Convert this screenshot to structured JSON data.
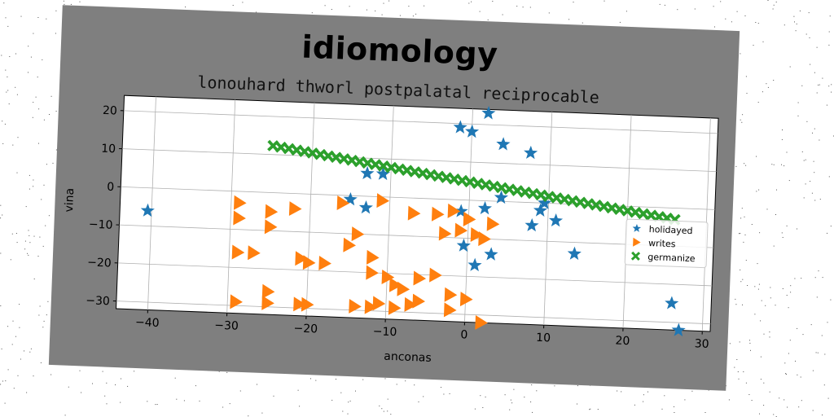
{
  "chart_data": {
    "type": "scatter",
    "title": "idiomology",
    "subtitle": "lonouhard thworl postpalatal reciprocable",
    "xlabel": "anconas",
    "ylabel": "vina",
    "xlim": [
      -44,
      31
    ],
    "ylim": [
      -32,
      24
    ],
    "xticks": [
      -40,
      -30,
      -20,
      -10,
      0,
      10,
      20,
      30
    ],
    "yticks": [
      -30,
      -20,
      -10,
      0,
      10,
      20
    ],
    "grid": true,
    "legend_position": "center-right",
    "series": [
      {
        "name": "holidayed",
        "marker": "star",
        "color": "#1f77b4",
        "points": [
          [
            -40.5,
            -6
          ],
          [
            2,
            23
          ],
          [
            -1.5,
            19
          ],
          [
            0,
            18
          ],
          [
            4,
            15
          ],
          [
            7.5,
            13
          ],
          [
            -13,
            6
          ],
          [
            -11,
            6
          ],
          [
            -15,
            -1
          ],
          [
            -13,
            -3
          ],
          [
            2,
            -2
          ],
          [
            4,
            1
          ],
          [
            9,
            -2
          ],
          [
            9.5,
            0
          ],
          [
            11,
            -4.5
          ],
          [
            8,
            -6
          ],
          [
            -1,
            -3
          ],
          [
            -0.5,
            -12
          ],
          [
            3,
            -14
          ],
          [
            1,
            -17
          ],
          [
            13.5,
            -13
          ],
          [
            26,
            -25
          ],
          [
            27,
            -32
          ]
        ]
      },
      {
        "name": "writes",
        "marker": "triangle-right",
        "color": "#ff7f0e",
        "points": [
          [
            -29,
            -3
          ],
          [
            -29,
            -7
          ],
          [
            -25,
            -5
          ],
          [
            -22,
            -4
          ],
          [
            -25,
            -9
          ],
          [
            -16,
            -2
          ],
          [
            -14,
            -10
          ],
          [
            -15,
            -13
          ],
          [
            -29,
            -16
          ],
          [
            -27,
            -16
          ],
          [
            -21,
            -17
          ],
          [
            -20,
            -18
          ],
          [
            -18,
            -18
          ],
          [
            -11,
            -1
          ],
          [
            -12,
            -16
          ],
          [
            -12,
            -20
          ],
          [
            -10,
            -21
          ],
          [
            -9,
            -23
          ],
          [
            -8,
            -24
          ],
          [
            -6,
            -21
          ],
          [
            -4,
            -20
          ],
          [
            -7,
            -4
          ],
          [
            -4,
            -4
          ],
          [
            -2,
            -3
          ],
          [
            -3,
            -9
          ],
          [
            -1,
            -8
          ],
          [
            1,
            -9
          ],
          [
            2,
            -10
          ],
          [
            3,
            -6
          ],
          [
            0,
            -5
          ],
          [
            -29,
            -29
          ],
          [
            -25,
            -26
          ],
          [
            -25,
            -29
          ],
          [
            -21,
            -29
          ],
          [
            -20,
            -29
          ],
          [
            -14,
            -29
          ],
          [
            -12,
            -29
          ],
          [
            -11,
            -28
          ],
          [
            -9,
            -29
          ],
          [
            -7,
            -28
          ],
          [
            -6,
            -27
          ],
          [
            -2,
            -25
          ],
          [
            -2,
            -29
          ],
          [
            0,
            -26
          ],
          [
            2,
            -32
          ]
        ]
      },
      {
        "name": "germanize",
        "marker": "x-filled",
        "color": "#2ca02c",
        "points": [
          [
            -25,
            12.3
          ],
          [
            -24,
            12
          ],
          [
            -23,
            11.7
          ],
          [
            -22,
            11.4
          ],
          [
            -21,
            11.1
          ],
          [
            -20,
            10.8
          ],
          [
            -19,
            10.5
          ],
          [
            -18,
            10.2
          ],
          [
            -17,
            9.9
          ],
          [
            -16,
            9.6
          ],
          [
            -15,
            9.3
          ],
          [
            -14,
            9
          ],
          [
            -13,
            8.7
          ],
          [
            -12,
            8.4
          ],
          [
            -11,
            8.1
          ],
          [
            -10,
            7.8
          ],
          [
            -9,
            7.5
          ],
          [
            -8,
            7.2
          ],
          [
            -7,
            6.9
          ],
          [
            -6,
            6.6
          ],
          [
            -5,
            6.3
          ],
          [
            -4,
            6
          ],
          [
            -3,
            5.7
          ],
          [
            -2,
            5.4
          ],
          [
            -1,
            5.1
          ],
          [
            0,
            4.8
          ],
          [
            1,
            4.5
          ],
          [
            2,
            4.2
          ],
          [
            3,
            3.9
          ],
          [
            4,
            3.6
          ],
          [
            5,
            3.3
          ],
          [
            6,
            3
          ],
          [
            7,
            2.7
          ],
          [
            8,
            2.4
          ],
          [
            9,
            2.1
          ],
          [
            10,
            1.8
          ],
          [
            11,
            1.5
          ],
          [
            12,
            1.2
          ],
          [
            13,
            0.9
          ],
          [
            14,
            0.6
          ],
          [
            15,
            0.3
          ],
          [
            16,
            0
          ],
          [
            17,
            -0.3
          ],
          [
            18,
            -0.6
          ],
          [
            19,
            -0.9
          ],
          [
            20,
            -1.2
          ],
          [
            21,
            -1.5
          ],
          [
            22,
            -1.8
          ],
          [
            23,
            -2.1
          ],
          [
            24,
            -2.4
          ],
          [
            25,
            -2.7
          ],
          [
            26,
            -3
          ]
        ]
      }
    ]
  }
}
